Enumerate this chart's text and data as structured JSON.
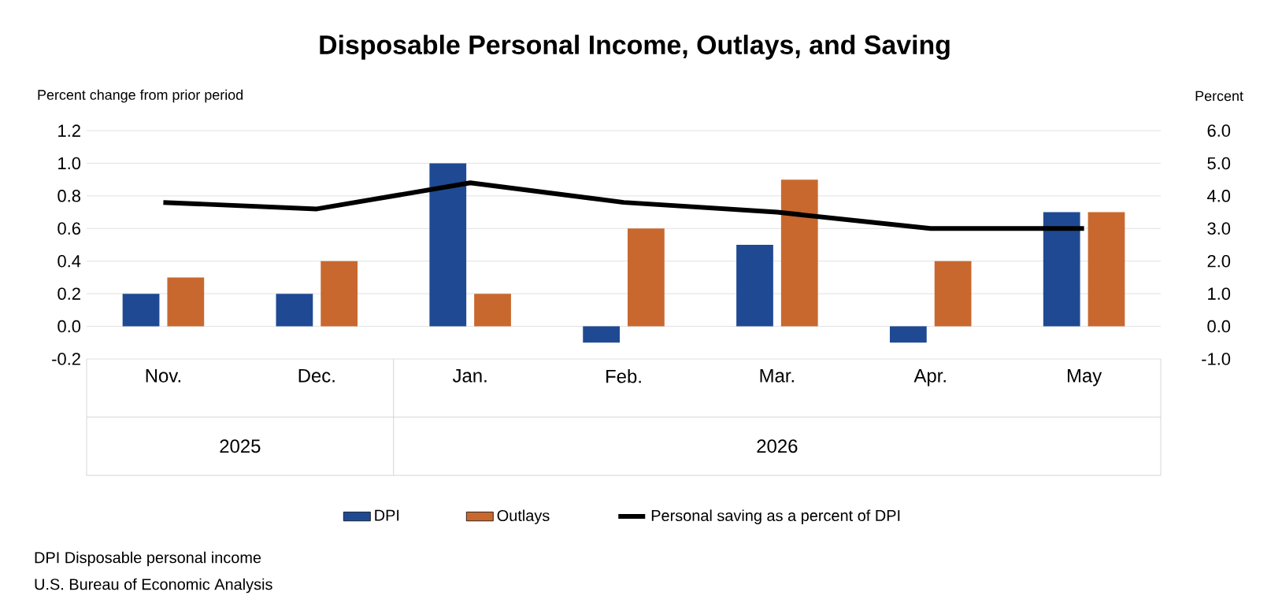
{
  "chart_data": {
    "type": "bar",
    "title": "Disposable Personal Income, Outlays, and Saving",
    "ylabel": "Percent change from prior period",
    "y2label": "Percent",
    "categories": [
      "Nov.",
      "Dec.",
      "Jan.",
      "Feb.",
      "Mar.",
      "Apr.",
      "May"
    ],
    "series": [
      {
        "name": "DPI",
        "color": "#1f4a93",
        "values": [
          0.2,
          0.2,
          1.0,
          -0.1,
          0.5,
          -0.1,
          0.7
        ]
      },
      {
        "name": "Outlays",
        "color": "#c8682f",
        "values": [
          0.3,
          0.4,
          0.2,
          0.6,
          0.9,
          0.4,
          0.7
        ]
      },
      {
        "name": "Personal saving as a percent of DPI",
        "type": "line",
        "axis": "y2",
        "color": "#000000",
        "values": [
          3.8,
          3.6,
          4.4,
          3.8,
          3.5,
          3.0,
          3.0
        ]
      }
    ],
    "ylim": [
      -0.2,
      1.2
    ],
    "yticks": [
      -0.2,
      {
        "value": 0,
        "label": "0.0"
      },
      0.2,
      0.4,
      0.6,
      0.8,
      {
        "value": 1,
        "label": "1.0"
      },
      1.2
    ],
    "y2lim": [
      -1,
      6
    ],
    "y2ticks": [
      {
        "value": -1,
        "label": "-1.0"
      },
      {
        "value": 0,
        "label": "0.0"
      },
      {
        "value": 1,
        "label": "1.0"
      },
      {
        "value": 2,
        "label": "2.0"
      },
      {
        "value": 3,
        "label": "3.0"
      },
      {
        "value": 4,
        "label": "4.0"
      },
      {
        "value": 5,
        "label": "5.0"
      },
      {
        "value": 6,
        "label": "6.0"
      }
    ],
    "grid": "y",
    "legend": "bottom",
    "marker": "none",
    "line_style": "solid",
    "annotations": [
      "2025",
      "2026",
      "DPI Disposable personal income",
      "U.S. Bureau of Economic Analysis"
    ]
  }
}
